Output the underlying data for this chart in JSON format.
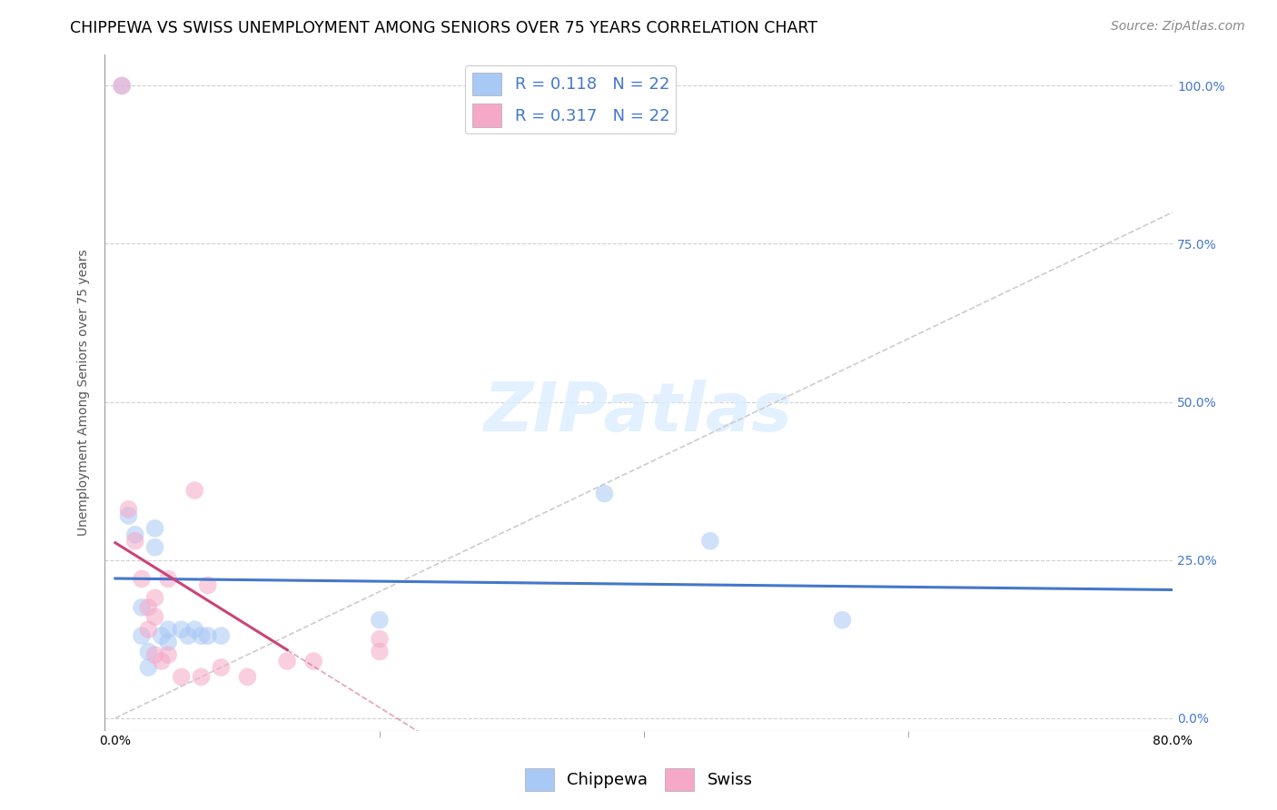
{
  "title": "CHIPPEWA VS SWISS UNEMPLOYMENT AMONG SENIORS OVER 75 YEARS CORRELATION CHART",
  "source": "Source: ZipAtlas.com",
  "ylabel": "Unemployment Among Seniors over 75 years",
  "xmin": 0.0,
  "xmax": 0.8,
  "ymin": 0.0,
  "ymax": 1.05,
  "chippewa_color": "#a8c8f5",
  "swiss_color": "#f5a8c8",
  "trendline_chippewa_color": "#4477cc",
  "trendline_swiss_color": "#cc4477",
  "diagonal_color": "#cccccc",
  "R_chippewa": 0.118,
  "N_chippewa": 22,
  "R_swiss": 0.317,
  "N_swiss": 22,
  "chippewa_x": [
    0.005,
    0.01,
    0.015,
    0.02,
    0.02,
    0.025,
    0.025,
    0.03,
    0.03,
    0.035,
    0.04,
    0.04,
    0.05,
    0.055,
    0.06,
    0.065,
    0.07,
    0.08,
    0.2,
    0.37,
    0.45,
    0.55
  ],
  "chippewa_y": [
    1.0,
    0.32,
    0.29,
    0.175,
    0.13,
    0.105,
    0.08,
    0.3,
    0.27,
    0.13,
    0.14,
    0.12,
    0.14,
    0.13,
    0.14,
    0.13,
    0.13,
    0.13,
    0.155,
    0.355,
    0.28,
    0.155
  ],
  "swiss_x": [
    0.005,
    0.01,
    0.015,
    0.02,
    0.025,
    0.025,
    0.03,
    0.03,
    0.03,
    0.035,
    0.04,
    0.04,
    0.05,
    0.06,
    0.065,
    0.07,
    0.08,
    0.1,
    0.13,
    0.15,
    0.2,
    0.2
  ],
  "swiss_y": [
    1.0,
    0.33,
    0.28,
    0.22,
    0.175,
    0.14,
    0.19,
    0.16,
    0.1,
    0.09,
    0.22,
    0.1,
    0.065,
    0.36,
    0.065,
    0.21,
    0.08,
    0.065,
    0.09,
    0.09,
    0.125,
    0.105
  ],
  "marker_size": 200,
  "marker_alpha": 0.55,
  "grid_color": "#d0d0d0",
  "background_color": "#ffffff",
  "title_fontsize": 12.5,
  "source_fontsize": 10,
  "axis_label_fontsize": 10,
  "tick_fontsize": 10,
  "legend_fontsize": 13
}
